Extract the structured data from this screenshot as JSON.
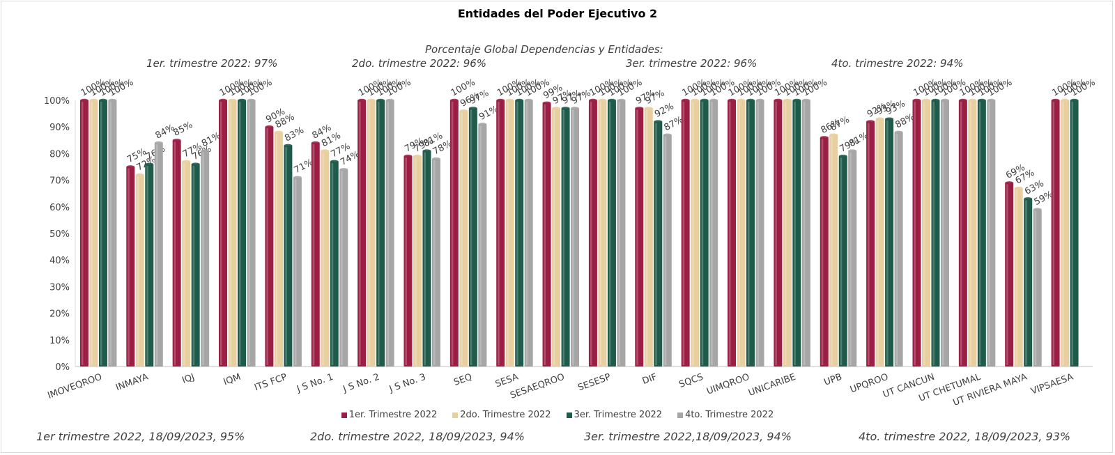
{
  "chart_data": {
    "type": "bar",
    "title": "Entidades del Poder Ejecutivo 2",
    "categories": [
      "IMOVEQROO",
      "INMAYA",
      "IQJ",
      "IQM",
      "ITS FCP",
      "J S No. 1",
      "J S No. 2",
      "J S No. 3",
      "SEQ",
      "SESA",
      "SESAEQROO",
      "SESESP",
      "DIF",
      "SQCS",
      "UIMQROO",
      "UNICARIBE",
      "UPB",
      "UPQROO",
      "UT CANCUN",
      "UT CHETUMAL",
      "UT RIVIERA MAYA",
      "VIPSAESA"
    ],
    "series": [
      {
        "name": "1er. Trimestre 2022",
        "color": "#9B1F45",
        "values": [
          100,
          75,
          85,
          100,
          90,
          84,
          100,
          79,
          100,
          100,
          99,
          100,
          97,
          100,
          100,
          100,
          86,
          92,
          100,
          100,
          69,
          100
        ]
      },
      {
        "name": "2do. Trimestre 2022",
        "color": "#E8CFA0",
        "values": [
          100,
          72,
          77,
          100,
          88,
          81,
          100,
          79,
          96,
          100,
          97,
          100,
          97,
          100,
          100,
          100,
          87,
          93,
          100,
          100,
          67,
          100
        ]
      },
      {
        "name": "3er. Trimestre 2022",
        "color": "#1E5B4A",
        "values": [
          100,
          76,
          76,
          100,
          83,
          77,
          100,
          81,
          97,
          100,
          97,
          100,
          92,
          100,
          100,
          100,
          79,
          93,
          100,
          100,
          63,
          100
        ]
      },
      {
        "name": "4to. Trimestre 2022",
        "color": "#A6A6A6",
        "values": [
          100,
          84,
          81,
          100,
          71,
          74,
          100,
          78,
          91,
          100,
          97,
          100,
          87,
          100,
          100,
          100,
          81,
          88,
          100,
          100,
          59,
          null
        ]
      }
    ],
    "ylim": [
      0,
      100
    ],
    "yticks": [
      "0%",
      "10%",
      "20%",
      "30%",
      "40%",
      "50%",
      "60%",
      "70%",
      "80%",
      "90%",
      "100%"
    ],
    "data_labels": [
      [
        "100%",
        "75%",
        "85%",
        "100%",
        "90%",
        "84%",
        "100%",
        "79%",
        "100%",
        "100%",
        "99%",
        "100%",
        "97%",
        "100%",
        "100%",
        "100%",
        "86%",
        "92%",
        "100%",
        "100%",
        "69%",
        "100%"
      ],
      [
        "100%",
        "72%",
        "77%",
        "100%",
        "88%",
        "81%",
        "100%",
        "79%",
        "96%",
        "100%",
        "97%",
        "100%",
        "97%",
        "100%",
        "100%",
        "100%",
        "87%",
        "93%",
        "100%",
        "100%",
        "67%",
        "100%"
      ],
      [
        "100%",
        "76%",
        "76%",
        "100%",
        "83%",
        "77%",
        "100%",
        "81%",
        "97%",
        "100%",
        "97%",
        "100%",
        "92%",
        "100%",
        "100%",
        "100%",
        "79%",
        "93%",
        "100%",
        "100%",
        "63%",
        "100%"
      ],
      [
        "100%",
        "84%",
        "81%",
        "100%",
        "71%",
        "74%",
        "100%",
        "78%",
        "91%",
        "100%",
        "97%",
        "100%",
        "87%",
        "100%",
        "100%",
        "100%",
        "81%",
        "88%",
        "100%",
        "100%",
        "59%",
        ""
      ]
    ],
    "grid": false,
    "legend_position": "bottom"
  },
  "annotations": {
    "header": "Porcentaje Global  Dependencias y Entidades:",
    "q1": "1er. trimestre 2022: 97%",
    "q2": "2do. trimestre 2022: 96%",
    "q3": "3er. trimestre 2022: 96%",
    "q4": "4to. trimestre 2022: 94%"
  },
  "footer": {
    "f1": "1er trimestre  2022,  18/09/2023, 95%",
    "f2": "2do. trimestre 2022, 18/09/2023, 94%",
    "f3": "3er. trimestre 2022,18/09/2023, 94%",
    "f4": "4to. trimestre 2022, 18/09/2023, 93%"
  }
}
